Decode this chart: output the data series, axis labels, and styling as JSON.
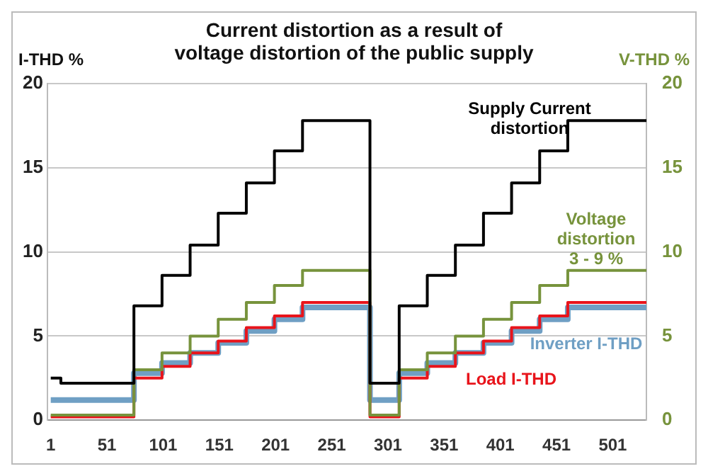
{
  "chart_data": {
    "type": "step",
    "title": "Current distortion as a result of voltage distortion of the public supply",
    "ylabel": "I-THD %",
    "y2label": "V-THD %",
    "xlim": [
      -2,
      531
    ],
    "xticks": [
      1,
      51,
      101,
      151,
      201,
      251,
      301,
      351,
      401,
      451,
      501
    ],
    "ylim": [
      0,
      20
    ],
    "yticks": [
      0,
      5,
      10,
      15,
      20
    ],
    "y2lim": [
      0,
      20
    ],
    "y2ticks": [
      0,
      5,
      10,
      15,
      20
    ],
    "grid": "y",
    "legend": false,
    "series": [
      {
        "name": "Inverter I-THD",
        "color": "#6f9fc4",
        "x": [
          1,
          75,
          100,
          125,
          150,
          175,
          200,
          225,
          285,
          311,
          336,
          361,
          386,
          411,
          436,
          461,
          531
        ],
        "values": [
          1.2,
          2.8,
          3.4,
          4.0,
          4.6,
          5.3,
          6.0,
          6.7,
          1.2,
          2.8,
          3.4,
          4.0,
          4.6,
          5.3,
          6.0,
          6.7,
          6.7
        ]
      },
      {
        "name": "Load I-THD",
        "color": "#e8141b",
        "x": [
          1,
          75,
          100,
          125,
          150,
          175,
          200,
          225,
          285,
          311,
          336,
          361,
          386,
          411,
          436,
          461,
          531
        ],
        "values": [
          0.2,
          2.5,
          3.2,
          4.0,
          4.7,
          5.5,
          6.2,
          7.0,
          0.2,
          2.5,
          3.2,
          4.0,
          4.7,
          5.5,
          6.2,
          7.0,
          7.0
        ]
      },
      {
        "name": "Voltage distortion 3 - 9 %",
        "color": "#77933c",
        "axis": "y2",
        "x": [
          1,
          75,
          100,
          125,
          150,
          175,
          200,
          225,
          285,
          311,
          336,
          361,
          386,
          411,
          436,
          461,
          531
        ],
        "values": [
          0.3,
          3.0,
          4.0,
          5.0,
          6.0,
          7.0,
          8.0,
          8.9,
          0.3,
          3.0,
          4.0,
          5.0,
          6.0,
          7.0,
          8.0,
          8.9,
          8.9
        ]
      },
      {
        "name": "Supply Current distortion",
        "color": "#000000",
        "x": [
          1,
          10,
          75,
          100,
          125,
          150,
          175,
          200,
          225,
          285,
          311,
          336,
          361,
          386,
          411,
          436,
          461,
          531
        ],
        "values": [
          2.5,
          2.2,
          6.8,
          8.6,
          10.4,
          12.3,
          14.1,
          16.0,
          17.8,
          2.2,
          6.8,
          8.6,
          10.4,
          12.3,
          14.1,
          16.0,
          17.8,
          17.8
        ]
      }
    ]
  }
}
